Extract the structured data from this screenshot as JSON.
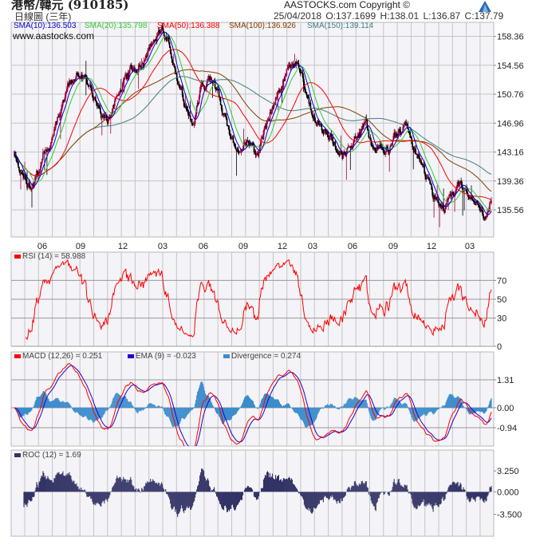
{
  "header": {
    "title": "港幣/韓元 (910185)",
    "subtitle": "日線圖 (三年)",
    "copyright": "AASTOCKS.com Copyright ©",
    "ohlc": "25/04/2018  O:137.1699  H:138.01  L:136.87  C:137.79",
    "watermark": "www.aastocks.com"
  },
  "legends": {
    "sma10": "SMA(10):136.503",
    "sma20": "SMA(20):135.798",
    "sma50": "SMA(50):136.388",
    "sma100": "SMA(100):136.926",
    "sma150": "SMA(150):139.114",
    "rsi": "RSI (14) = 58.988",
    "macd": "MACD (12,26) = 0.251",
    "ema": "EMA (9) = -0.023",
    "divergence": "Divergence = 0.274",
    "roc": "ROC (12) = 1.69"
  },
  "colors": {
    "up": "#a0003c",
    "down": "#000000",
    "sma10": "#0000cc",
    "sma20": "#33cc33",
    "sma50": "#ff0000",
    "sma100": "#804000",
    "sma150": "#408080",
    "rsi": "#ff0000",
    "macd": "#ff0000",
    "ema": "#2200cc",
    "divergence": "#3b8ccc",
    "roc": "#333366",
    "panel": "#f4f3f7",
    "grid": "#c4c4c4"
  },
  "chart_data": {
    "type": "candlestick",
    "title": "港幣/韓元 (910185)",
    "x_tick_labels": [
      "06",
      "09",
      "12",
      "03",
      "06",
      "09",
      "12",
      "03",
      "06",
      "09",
      "12",
      "03"
    ],
    "price_axis": {
      "labels": [
        "158.36",
        "154.56",
        "150.76",
        "146.96",
        "143.16",
        "139.36",
        "135.56"
      ],
      "values": [
        158.36,
        154.56,
        150.76,
        146.96,
        143.16,
        139.36,
        135.56
      ],
      "range": [
        132.0,
        160.2
      ]
    },
    "close_path_approx": [
      142.7,
      140.6,
      138.5,
      140.6,
      143.7,
      145.3,
      148.4,
      151.6,
      153.7,
      153.1,
      150.5,
      148.4,
      147.4,
      149.5,
      152.6,
      153.7,
      155.2,
      155.7,
      158.9,
      159.4,
      156.8,
      151.6,
      148.9,
      147.4,
      151.6,
      152.6,
      150.5,
      147.4,
      144.8,
      142.7,
      144.2,
      142.1,
      146.3,
      149.5,
      151.6,
      153.7,
      155.2,
      152.6,
      148.4,
      146.3,
      145.8,
      144.2,
      143.2,
      144.2,
      145.3,
      146.3,
      143.2,
      144.8,
      143.7,
      145.3,
      146.3,
      144.2,
      142.1,
      138.5,
      136.9,
      135.9,
      136.9,
      138.5,
      136.9,
      136.1,
      135.0,
      137.8
    ],
    "moving_averages": [
      10,
      20,
      50,
      100,
      150
    ],
    "rsi": {
      "period": 14,
      "levels": [
        "70",
        "50",
        "30",
        "0"
      ],
      "level_values": [
        70,
        50,
        30,
        0
      ],
      "range": [
        0,
        100
      ]
    },
    "macd": {
      "fast": 12,
      "slow": 26,
      "signal": 9,
      "labels": [
        "1.31",
        "0.00",
        "-0.94"
      ],
      "label_values": [
        1.31,
        0,
        -0.94
      ],
      "range": [
        -1.8,
        2.62
      ]
    },
    "roc": {
      "period": 12,
      "labels": [
        "3.250",
        "0.000",
        "-3.500"
      ],
      "label_values": [
        3.25,
        0,
        -3.5
      ],
      "range": [
        -6.9,
        6.5
      ]
    }
  }
}
